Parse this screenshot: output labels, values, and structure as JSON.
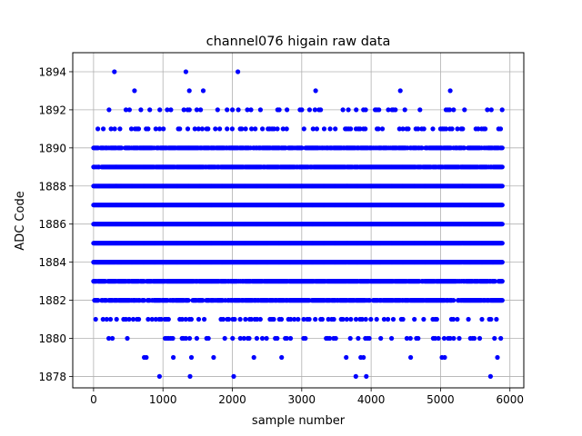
{
  "chart_data": {
    "type": "scatter",
    "title": "channel076 higain raw data",
    "xlabel": "sample number",
    "ylabel": "ADC Code",
    "xlim": [
      -300,
      6200
    ],
    "ylim": [
      1877.4,
      1895.0
    ],
    "xticks": [
      0,
      1000,
      2000,
      3000,
      4000,
      5000,
      6000
    ],
    "yticks": [
      1878,
      1880,
      1882,
      1884,
      1886,
      1888,
      1890,
      1892,
      1894
    ],
    "grid": true,
    "marker_color": "#0000ff",
    "series": [
      {
        "x_range": [
          0,
          5900
        ],
        "dense_levels": [
          1882,
          1883,
          1884,
          1885,
          1886,
          1887,
          1888,
          1889,
          1890
        ],
        "sparse_levels": [
          1880,
          1881,
          1891,
          1892
        ],
        "outliers": [
          {
            "x": 300,
            "y": 1894
          },
          {
            "x": 1330,
            "y": 1894
          },
          {
            "x": 2080,
            "y": 1894
          },
          {
            "x": 590,
            "y": 1893
          },
          {
            "x": 1380,
            "y": 1893
          },
          {
            "x": 1580,
            "y": 1893
          },
          {
            "x": 3200,
            "y": 1893
          },
          {
            "x": 4420,
            "y": 1893
          },
          {
            "x": 5140,
            "y": 1893
          },
          {
            "x": 950,
            "y": 1878
          },
          {
            "x": 1390,
            "y": 1878
          },
          {
            "x": 2020,
            "y": 1878
          },
          {
            "x": 3780,
            "y": 1878
          },
          {
            "x": 3930,
            "y": 1878
          },
          {
            "x": 5720,
            "y": 1878
          },
          {
            "x": 730,
            "y": 1879
          },
          {
            "x": 760,
            "y": 1879
          },
          {
            "x": 1150,
            "y": 1879
          },
          {
            "x": 1410,
            "y": 1879
          },
          {
            "x": 1730,
            "y": 1879
          },
          {
            "x": 2310,
            "y": 1879
          },
          {
            "x": 2710,
            "y": 1879
          },
          {
            "x": 3640,
            "y": 1879
          },
          {
            "x": 3850,
            "y": 1879
          },
          {
            "x": 3890,
            "y": 1879
          },
          {
            "x": 4570,
            "y": 1879
          },
          {
            "x": 5020,
            "y": 1879
          },
          {
            "x": 5060,
            "y": 1879
          },
          {
            "x": 5820,
            "y": 1879
          }
        ]
      }
    ]
  }
}
